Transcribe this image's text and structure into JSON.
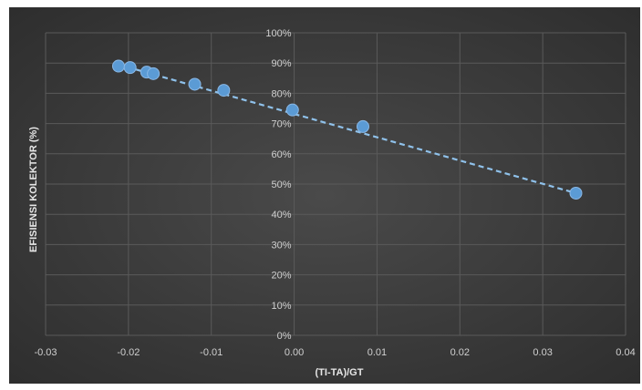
{
  "chart_data": {
    "type": "scatter",
    "title": "",
    "xlabel": "(TI-TA)/GT",
    "ylabel": "EFISIENSI KOLEKTOR (%)",
    "xlim": [
      -0.03,
      0.04
    ],
    "ylim": [
      0,
      1
    ],
    "x_ticks": [
      -0.03,
      -0.02,
      -0.01,
      0.0,
      0.01,
      0.02,
      0.03,
      0.04
    ],
    "x_tick_labels": [
      "-0.03",
      "-0.02",
      "-0.01",
      "0.00",
      "0.01",
      "0.02",
      "0.03",
      "0.04"
    ],
    "y_ticks": [
      0,
      0.1,
      0.2,
      0.3,
      0.4,
      0.5,
      0.6,
      0.7,
      0.8,
      0.9,
      1.0
    ],
    "y_tick_labels": [
      "0%",
      "10%",
      "20%",
      "30%",
      "40%",
      "50%",
      "60%",
      "70%",
      "80%",
      "90%",
      "100%"
    ],
    "grid": true,
    "series": [
      {
        "x": [
          -0.0212,
          -0.0198,
          -0.0178,
          -0.017,
          -0.012,
          -0.0085,
          -0.0002,
          0.0083,
          0.034
        ],
        "y": [
          0.89,
          0.885,
          0.87,
          0.865,
          0.83,
          0.81,
          0.745,
          0.69,
          0.47
        ],
        "color": "#5b9bd5"
      }
    ],
    "trendline": {
      "style": "dashed",
      "color": "#8fc1ea",
      "x": [
        -0.0212,
        0.034
      ],
      "y": [
        0.895,
        0.47
      ]
    },
    "colors": {
      "background": "#3a3a3a",
      "grid": "#5a5a5a",
      "marker": "#5b9bd5"
    }
  }
}
